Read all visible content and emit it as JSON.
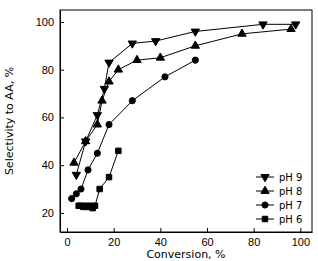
{
  "chart_data": {
    "type": "line",
    "x_label": "Conversion, %",
    "y_label": "Selectivity to AA, %",
    "xlim": [
      -3,
      105
    ],
    "xticks": [
      0,
      20,
      40,
      60,
      80,
      100
    ],
    "ylim": [
      12,
      105
    ],
    "yticks": [
      20,
      40,
      60,
      80,
      100
    ],
    "legend": "lower right",
    "series": [
      {
        "name": "pH 9",
        "color": "#000000",
        "marker": "triangle-down",
        "x": [
          4,
          8,
          13,
          16,
          18,
          28,
          38,
          55,
          84,
          98
        ],
        "values": [
          36,
          50,
          61,
          72,
          83,
          91,
          92,
          96,
          99,
          99
        ]
      },
      {
        "name": "pH 8",
        "color": "#000000",
        "marker": "triangle-up",
        "x": [
          3,
          8,
          13,
          15,
          18,
          22,
          30,
          40,
          55,
          75,
          96
        ],
        "values": [
          41,
          50,
          57,
          67,
          75,
          80,
          84,
          85,
          90,
          95,
          97
        ]
      },
      {
        "name": "pH 7",
        "color": "#000000",
        "marker": "circle",
        "x": [
          2,
          4,
          6,
          9,
          13,
          18,
          28,
          42,
          55
        ],
        "values": [
          26,
          28,
          30,
          38,
          45,
          57,
          67,
          77,
          84
        ]
      },
      {
        "name": "pH 6",
        "color": "#000000",
        "marker": "square",
        "x": [
          5,
          6,
          7,
          8,
          9,
          10,
          11,
          12,
          14,
          18,
          22
        ],
        "values": [
          23,
          23,
          22.5,
          23,
          22.5,
          23,
          22,
          23,
          30,
          35,
          46
        ]
      }
    ]
  }
}
